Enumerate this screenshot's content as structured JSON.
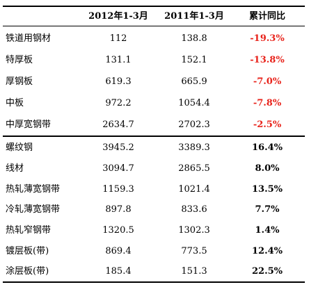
{
  "table": {
    "headers": [
      "",
      "2012年1-3月",
      "2011年1-3月",
      "累计同比"
    ],
    "group_decline": [
      {
        "name": "铁道用钢材",
        "y2012": "112",
        "y2011": "138.8",
        "change": "-19.3%"
      },
      {
        "name": "特厚板",
        "y2012": "131.1",
        "y2011": "152.1",
        "change": "-13.8%"
      },
      {
        "name": "厚钢板",
        "y2012": "619.3",
        "y2011": "665.9",
        "change": "-7.0%"
      },
      {
        "name": "中板",
        "y2012": "972.2",
        "y2011": "1054.4",
        "change": "-7.8%"
      },
      {
        "name": "中厚宽钢带",
        "y2012": "2634.7",
        "y2011": "2702.3",
        "change": "-2.5%"
      }
    ],
    "group_growth": [
      {
        "name": "螺纹钢",
        "y2012": "3945.2",
        "y2011": "3389.3",
        "change": "16.4%"
      },
      {
        "name": "线材",
        "y2012": "3094.7",
        "y2011": "2865.5",
        "change": "8.0%"
      },
      {
        "name": "热轧薄宽钢带",
        "y2012": "1159.3",
        "y2011": "1021.4",
        "change": "13.5%"
      },
      {
        "name": "冷轧薄宽钢带",
        "y2012": "897.8",
        "y2011": "833.6",
        "change": "7.7%"
      },
      {
        "name": "热轧窄钢带",
        "y2012": "1320.5",
        "y2011": "1302.3",
        "change": "1.4%"
      },
      {
        "name": "镀层板(带)",
        "y2012": "869.4",
        "y2011": "773.5",
        "change": "12.4%"
      },
      {
        "name": "涂层板(带)",
        "y2012": "185.4",
        "y2011": "151.3",
        "change": "22.5%"
      }
    ],
    "colors": {
      "negative": "#e8231b",
      "positive": "#000000"
    }
  }
}
